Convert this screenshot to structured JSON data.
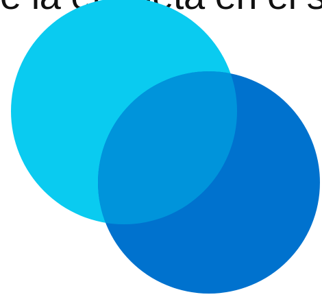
{
  "header": {
    "partial_text": "e la etiqueta en el sitio"
  },
  "graphic": {
    "type": "overlapping-circles-logo",
    "colors": {
      "light_circle": "#0ACBF0",
      "dark_circle": "#0072CE",
      "overlap": "#0094DB"
    }
  }
}
